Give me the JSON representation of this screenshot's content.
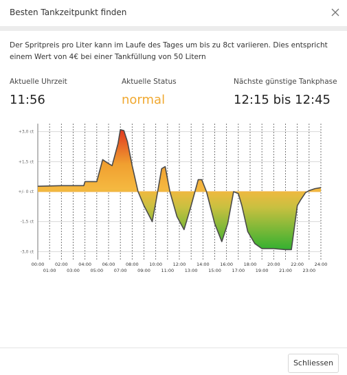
{
  "dialog": {
    "title": "Besten Tankzeitpunkt finden",
    "button": "Schliessen"
  },
  "description": "Der Spritpreis pro Liter kann im Laufe des Tages um bis zu 8ct variieren. Dies entspricht einem Wert von 4€ bei einer Tankfüllung von 50 Litern",
  "stats": [
    {
      "label": "Aktuelle Uhrzeit",
      "value": "11:56"
    },
    {
      "label": "Aktuelle Status",
      "value": "normal"
    },
    {
      "label": "Nächste günstige Tankphase",
      "value": "12:15 bis 12:45"
    }
  ],
  "chart_data": {
    "type": "area",
    "x": [
      0,
      2,
      3.9,
      4,
      5,
      5.5,
      6,
      6.3,
      6.8,
      7,
      7.3,
      7.6,
      8,
      8.5,
      9,
      9.7,
      10,
      10.5,
      10.8,
      11.2,
      11.8,
      12.4,
      13,
      13.6,
      13.9,
      14.3,
      15,
      15.6,
      16.1,
      16.6,
      17,
      17.3,
      17.8,
      18.4,
      19,
      20,
      21,
      21.5,
      22,
      22.3,
      22.7,
      23,
      23.5,
      24
    ],
    "values": [
      0.27,
      0.3,
      0.3,
      0.5,
      0.5,
      1.6,
      1.4,
      1.3,
      2.4,
      3.1,
      3.05,
      2.5,
      1.3,
      0,
      -0.7,
      -1.5,
      -0.55,
      1.15,
      1.25,
      0,
      -1.25,
      -1.9,
      -0.7,
      0.6,
      0.6,
      0,
      -1.6,
      -2.5,
      -1.6,
      0,
      -0.1,
      -0.7,
      -2.0,
      -2.6,
      -2.85,
      -2.85,
      -2.9,
      -2.9,
      -0.7,
      -0.4,
      -0.05,
      0.05,
      0.15,
      0.2
    ],
    "color": "#4a4a4a",
    "xlim": [
      0,
      24
    ],
    "ylim": [
      -3.4,
      3.4
    ],
    "xticks": [
      {
        "value": 0,
        "label": "00:00"
      },
      {
        "value": 1,
        "label": "01:00"
      },
      {
        "value": 2,
        "label": "02:00"
      },
      {
        "value": 3,
        "label": "03:00"
      },
      {
        "value": 4,
        "label": "04:00"
      },
      {
        "value": 5,
        "label": "05:00"
      },
      {
        "value": 6,
        "label": "06:00"
      },
      {
        "value": 7,
        "label": "07:00"
      },
      {
        "value": 8,
        "label": "08:00"
      },
      {
        "value": 9,
        "label": "09:00"
      },
      {
        "value": 10,
        "label": "10:00"
      },
      {
        "value": 11,
        "label": "11:00"
      },
      {
        "value": 12,
        "label": "12:00"
      },
      {
        "value": 13,
        "label": "13:00"
      },
      {
        "value": 14,
        "label": "14:00"
      },
      {
        "value": 15,
        "label": "15:00"
      },
      {
        "value": 16,
        "label": "16:00"
      },
      {
        "value": 17,
        "label": "17:00"
      },
      {
        "value": 18,
        "label": "18:00"
      },
      {
        "value": 19,
        "label": "19:00"
      },
      {
        "value": 20,
        "label": "20:00"
      },
      {
        "value": 21,
        "label": "21:00"
      },
      {
        "value": 22,
        "label": "22:00"
      },
      {
        "value": 23,
        "label": "23:00"
      },
      {
        "value": 24,
        "label": "24:00"
      }
    ],
    "yticks": [
      {
        "value": 3,
        "label": "+3,0 ct"
      },
      {
        "value": 1.5,
        "label": "+1,5 ct"
      },
      {
        "value": 0,
        "label": "+/- 0 ct"
      },
      {
        "value": -1.5,
        "label": "-1,5 ct"
      },
      {
        "value": -3,
        "label": "-3,0 ct"
      }
    ],
    "grid": true
  }
}
